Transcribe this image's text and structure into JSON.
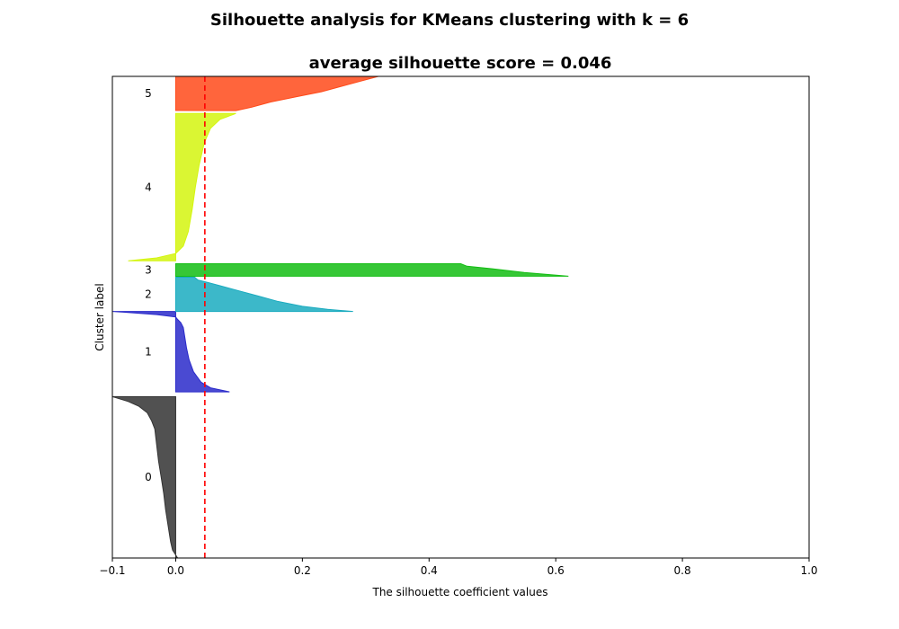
{
  "chart_data": {
    "type": "area",
    "suptitle": "Silhouette analysis for KMeans clustering with k = 6",
    "title": "average silhouette score = 0.046",
    "xlabel": "The silhouette coefficient values",
    "ylabel": "Cluster label",
    "xlim": [
      -0.1,
      1.0
    ],
    "ylim": [
      0,
      1000
    ],
    "xticks": [
      -0.1,
      0.0,
      0.2,
      0.4,
      0.6,
      0.8,
      1.0
    ],
    "xtick_labels": [
      "−0.1",
      "0.0",
      "0.2",
      "0.4",
      "0.6",
      "0.8",
      "1.0"
    ],
    "yticks_visible": false,
    "grid": false,
    "average_score": 0.046,
    "average_line_color": "#ff0000",
    "clusters": [
      {
        "label": "0",
        "y_lower": 0,
        "y_upper": 335,
        "color": "#333333",
        "max": 0.003,
        "min": -0.1,
        "profile": [
          [
            0,
            0.003
          ],
          [
            0.05,
            -0.005
          ],
          [
            0.1,
            -0.008
          ],
          [
            0.2,
            -0.012
          ],
          [
            0.3,
            -0.016
          ],
          [
            0.4,
            -0.019
          ],
          [
            0.5,
            -0.023
          ],
          [
            0.6,
            -0.027
          ],
          [
            0.7,
            -0.03
          ],
          [
            0.8,
            -0.033
          ],
          [
            0.85,
            -0.038
          ],
          [
            0.9,
            -0.045
          ],
          [
            0.94,
            -0.058
          ],
          [
            0.97,
            -0.075
          ],
          [
            1,
            -0.1
          ]
        ]
      },
      {
        "label": "1",
        "y_lower": 345,
        "y_upper": 512,
        "color": "#2a2aca",
        "max": 0.085,
        "min": -0.1,
        "profile": [
          [
            0,
            0.085
          ],
          [
            0.05,
            0.055
          ],
          [
            0.12,
            0.04
          ],
          [
            0.25,
            0.028
          ],
          [
            0.4,
            0.021
          ],
          [
            0.55,
            0.017
          ],
          [
            0.7,
            0.014
          ],
          [
            0.8,
            0.012
          ],
          [
            0.86,
            0.008
          ],
          [
            0.9,
            0.003
          ],
          [
            0.93,
            0.0
          ],
          [
            0.96,
            -0.03
          ],
          [
            0.99,
            -0.08
          ],
          [
            1,
            -0.1
          ]
        ]
      },
      {
        "label": "2",
        "y_lower": 512,
        "y_upper": 583,
        "color": "#1aabbf",
        "max": 0.28,
        "min": 0.0,
        "profile": [
          [
            0,
            0.28
          ],
          [
            0.06,
            0.24
          ],
          [
            0.15,
            0.2
          ],
          [
            0.3,
            0.16
          ],
          [
            0.45,
            0.13
          ],
          [
            0.6,
            0.1
          ],
          [
            0.75,
            0.07
          ],
          [
            0.85,
            0.05
          ],
          [
            0.92,
            0.035
          ],
          [
            1,
            0.03
          ]
        ]
      },
      {
        "label": "3",
        "y_lower": 585,
        "y_upper": 611,
        "color": "#13bd13",
        "max": 0.62,
        "min": 0.0,
        "profile": [
          [
            0,
            0.62
          ],
          [
            0.3,
            0.55
          ],
          [
            0.6,
            0.5
          ],
          [
            0.8,
            0.46
          ],
          [
            1,
            0.45
          ]
        ]
      },
      {
        "label": "4",
        "y_lower": 617,
        "y_upper": 923,
        "color": "#d4f50f",
        "max": 0.095,
        "min": -0.075,
        "profile": [
          [
            0,
            -0.075
          ],
          [
            0.02,
            -0.03
          ],
          [
            0.05,
            0.0
          ],
          [
            0.1,
            0.012
          ],
          [
            0.2,
            0.02
          ],
          [
            0.35,
            0.026
          ],
          [
            0.5,
            0.031
          ],
          [
            0.65,
            0.037
          ],
          [
            0.8,
            0.045
          ],
          [
            0.9,
            0.055
          ],
          [
            0.96,
            0.07
          ],
          [
            1,
            0.095
          ]
        ]
      },
      {
        "label": "5",
        "y_lower": 929,
        "y_upper": 1000,
        "color": "#ff4a1a",
        "max": 0.32,
        "min": 0.0,
        "profile": [
          [
            0,
            0.095
          ],
          [
            0.1,
            0.12
          ],
          [
            0.25,
            0.15
          ],
          [
            0.4,
            0.19
          ],
          [
            0.55,
            0.23
          ],
          [
            0.7,
            0.26
          ],
          [
            0.85,
            0.29
          ],
          [
            0.95,
            0.31
          ],
          [
            1,
            0.32
          ]
        ]
      }
    ]
  }
}
